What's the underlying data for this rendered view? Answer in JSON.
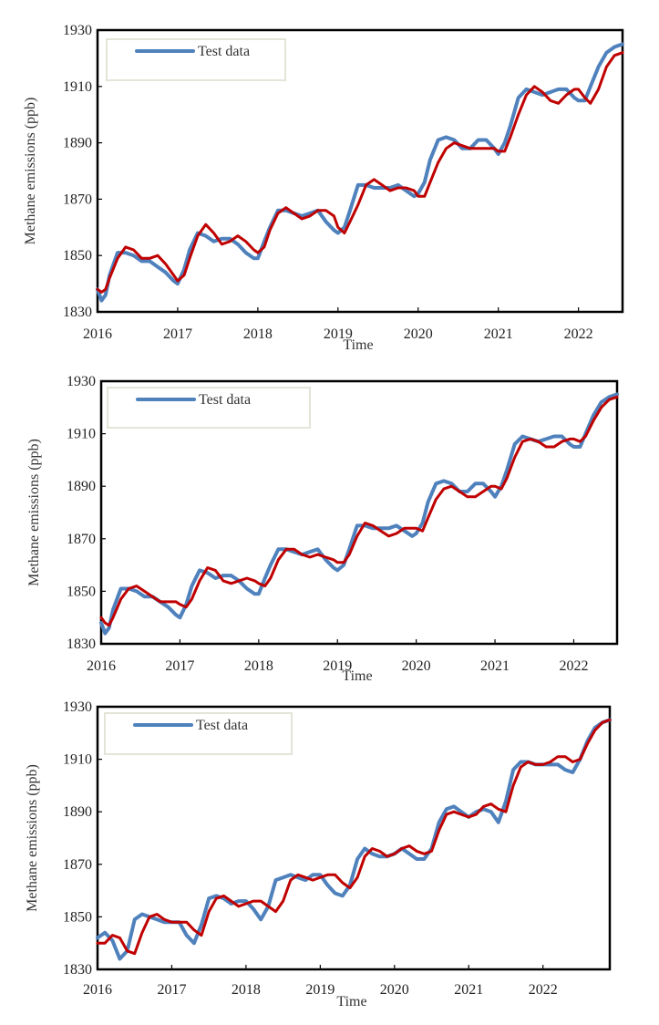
{
  "chart_data": [
    {
      "type": "line",
      "ylabel": "Methane emissions (ppb)",
      "xlabel": "Time",
      "legend": "Test data",
      "legend_position": "top-left",
      "x_ticks": [
        "2016",
        "2017",
        "2018",
        "2019",
        "2020",
        "2021",
        "2022"
      ],
      "y_ticks": [
        "1830",
        "1850",
        "1870",
        "1890",
        "1910",
        "1930"
      ],
      "ylim": [
        1830,
        1930
      ],
      "xlim": [
        2016.0,
        2022.55
      ],
      "grid": false,
      "colors": {
        "test": "#4f81bd",
        "pred": "#c00000"
      },
      "series": [
        {
          "name": "Test data",
          "x": [
            2016.0,
            2016.05,
            2016.1,
            2016.15,
            2016.25,
            2016.35,
            2016.45,
            2016.55,
            2016.65,
            2016.75,
            2016.85,
            2016.95,
            2017.0,
            2017.08,
            2017.15,
            2017.25,
            2017.35,
            2017.45,
            2017.55,
            2017.65,
            2017.75,
            2017.85,
            2017.95,
            2018.0,
            2018.08,
            2018.15,
            2018.25,
            2018.35,
            2018.45,
            2018.55,
            2018.65,
            2018.75,
            2018.85,
            2018.95,
            2019.0,
            2019.08,
            2019.15,
            2019.25,
            2019.35,
            2019.45,
            2019.55,
            2019.65,
            2019.75,
            2019.85,
            2019.95,
            2020.0,
            2020.08,
            2020.15,
            2020.25,
            2020.35,
            2020.45,
            2020.55,
            2020.65,
            2020.75,
            2020.85,
            2020.95,
            2021.0,
            2021.08,
            2021.15,
            2021.25,
            2021.35,
            2021.45,
            2021.55,
            2021.65,
            2021.75,
            2021.85,
            2021.95,
            2022.0,
            2022.08,
            2022.15,
            2022.25,
            2022.35,
            2022.45,
            2022.55
          ],
          "y": [
            1838,
            1834,
            1836,
            1843,
            1851,
            1851,
            1850,
            1848,
            1848,
            1846,
            1844,
            1841,
            1840,
            1845,
            1852,
            1858,
            1857,
            1855,
            1856,
            1856,
            1854,
            1851,
            1849,
            1849,
            1855,
            1860,
            1866,
            1866,
            1865,
            1864,
            1865,
            1866,
            1862,
            1859,
            1858,
            1860,
            1866,
            1875,
            1875,
            1874,
            1874,
            1874,
            1875,
            1873,
            1871,
            1872,
            1876,
            1884,
            1891,
            1892,
            1891,
            1888,
            1888,
            1891,
            1891,
            1888,
            1886,
            1890,
            1896,
            1906,
            1909,
            1908,
            1907,
            1908,
            1909,
            1909,
            1906,
            1905,
            1905,
            1910,
            1917,
            1922,
            1924,
            1925
          ]
        },
        {
          "name": "",
          "x": [
            2016.0,
            2016.05,
            2016.1,
            2016.15,
            2016.25,
            2016.35,
            2016.45,
            2016.55,
            2016.65,
            2016.75,
            2016.85,
            2016.95,
            2017.0,
            2017.08,
            2017.15,
            2017.25,
            2017.35,
            2017.45,
            2017.55,
            2017.65,
            2017.75,
            2017.85,
            2017.95,
            2018.0,
            2018.08,
            2018.15,
            2018.25,
            2018.35,
            2018.45,
            2018.55,
            2018.65,
            2018.75,
            2018.85,
            2018.95,
            2019.0,
            2019.08,
            2019.15,
            2019.25,
            2019.35,
            2019.45,
            2019.55,
            2019.65,
            2019.75,
            2019.85,
            2019.95,
            2020.0,
            2020.08,
            2020.15,
            2020.25,
            2020.35,
            2020.45,
            2020.55,
            2020.65,
            2020.75,
            2020.85,
            2020.95,
            2021.0,
            2021.08,
            2021.15,
            2021.25,
            2021.35,
            2021.45,
            2021.55,
            2021.65,
            2021.75,
            2021.85,
            2021.95,
            2022.0,
            2022.08,
            2022.15,
            2022.25,
            2022.35,
            2022.45,
            2022.55
          ],
          "y": [
            1838,
            1837,
            1838,
            1842,
            1849,
            1853,
            1852,
            1849,
            1849,
            1850,
            1847,
            1843,
            1841,
            1843,
            1849,
            1857,
            1861,
            1858,
            1854,
            1855,
            1857,
            1855,
            1852,
            1851,
            1853,
            1859,
            1865,
            1867,
            1865,
            1863,
            1864,
            1866,
            1866,
            1864,
            1860,
            1858,
            1862,
            1868,
            1875,
            1877,
            1875,
            1873,
            1874,
            1874,
            1873,
            1871,
            1871,
            1876,
            1883,
            1888,
            1890,
            1889,
            1888,
            1888,
            1888,
            1888,
            1887,
            1887,
            1892,
            1900,
            1907,
            1910,
            1908,
            1905,
            1904,
            1907,
            1909,
            1909,
            1906,
            1904,
            1909,
            1917,
            1921,
            1922
          ]
        }
      ]
    },
    {
      "type": "line",
      "ylabel": "Methane emissions (ppb)",
      "xlabel": "Time",
      "legend": "Test data",
      "legend_position": "top-left",
      "x_ticks": [
        "2016",
        "2017",
        "2018",
        "2019",
        "2020",
        "2021",
        "2022"
      ],
      "y_ticks": [
        "1830",
        "1850",
        "1870",
        "1890",
        "1910",
        "1930"
      ],
      "ylim": [
        1830,
        1930
      ],
      "xlim": [
        2016.0,
        2022.55
      ],
      "grid": false,
      "colors": {
        "test": "#4f81bd",
        "pred": "#c00000"
      },
      "series": [
        {
          "name": "Test data",
          "x": [
            2016.0,
            2016.05,
            2016.1,
            2016.15,
            2016.25,
            2016.35,
            2016.45,
            2016.55,
            2016.65,
            2016.75,
            2016.85,
            2016.95,
            2017.0,
            2017.08,
            2017.15,
            2017.25,
            2017.35,
            2017.45,
            2017.55,
            2017.65,
            2017.75,
            2017.85,
            2017.95,
            2018.0,
            2018.08,
            2018.15,
            2018.25,
            2018.35,
            2018.45,
            2018.55,
            2018.65,
            2018.75,
            2018.85,
            2018.95,
            2019.0,
            2019.08,
            2019.15,
            2019.25,
            2019.35,
            2019.45,
            2019.55,
            2019.65,
            2019.75,
            2019.85,
            2019.95,
            2020.0,
            2020.08,
            2020.15,
            2020.25,
            2020.35,
            2020.45,
            2020.55,
            2020.65,
            2020.75,
            2020.85,
            2020.95,
            2021.0,
            2021.08,
            2021.15,
            2021.25,
            2021.35,
            2021.45,
            2021.55,
            2021.65,
            2021.75,
            2021.85,
            2021.95,
            2022.0,
            2022.08,
            2022.15,
            2022.25,
            2022.35,
            2022.45,
            2022.55
          ],
          "y": [
            1838,
            1834,
            1836,
            1843,
            1851,
            1851,
            1850,
            1848,
            1848,
            1846,
            1844,
            1841,
            1840,
            1845,
            1852,
            1858,
            1857,
            1855,
            1856,
            1856,
            1854,
            1851,
            1849,
            1849,
            1855,
            1860,
            1866,
            1866,
            1865,
            1864,
            1865,
            1866,
            1862,
            1859,
            1858,
            1860,
            1866,
            1875,
            1875,
            1874,
            1874,
            1874,
            1875,
            1873,
            1871,
            1872,
            1876,
            1884,
            1891,
            1892,
            1891,
            1888,
            1888,
            1891,
            1891,
            1888,
            1886,
            1890,
            1896,
            1906,
            1909,
            1908,
            1907,
            1908,
            1909,
            1909,
            1906,
            1905,
            1905,
            1910,
            1917,
            1922,
            1924,
            1925
          ]
        },
        {
          "name": "",
          "x": [
            2016.0,
            2016.05,
            2016.1,
            2016.15,
            2016.25,
            2016.35,
            2016.45,
            2016.55,
            2016.65,
            2016.75,
            2016.85,
            2016.95,
            2017.0,
            2017.08,
            2017.15,
            2017.25,
            2017.35,
            2017.45,
            2017.55,
            2017.65,
            2017.75,
            2017.85,
            2017.95,
            2018.0,
            2018.08,
            2018.15,
            2018.25,
            2018.35,
            2018.45,
            2018.55,
            2018.65,
            2018.75,
            2018.85,
            2018.95,
            2019.0,
            2019.08,
            2019.15,
            2019.25,
            2019.35,
            2019.45,
            2019.55,
            2019.65,
            2019.75,
            2019.85,
            2019.95,
            2020.0,
            2020.08,
            2020.15,
            2020.25,
            2020.35,
            2020.45,
            2020.55,
            2020.65,
            2020.75,
            2020.85,
            2020.95,
            2021.0,
            2021.08,
            2021.15,
            2021.25,
            2021.35,
            2021.45,
            2021.55,
            2021.65,
            2021.75,
            2021.85,
            2021.95,
            2022.0,
            2022.08,
            2022.15,
            2022.25,
            2022.35,
            2022.45,
            2022.55
          ],
          "y": [
            1840,
            1838,
            1837,
            1840,
            1847,
            1851,
            1852,
            1850,
            1848,
            1846,
            1846,
            1846,
            1845,
            1844,
            1847,
            1854,
            1859,
            1858,
            1854,
            1853,
            1854,
            1855,
            1854,
            1853,
            1852,
            1855,
            1862,
            1866,
            1866,
            1864,
            1863,
            1864,
            1863,
            1862,
            1861,
            1861,
            1864,
            1871,
            1876,
            1875,
            1873,
            1871,
            1872,
            1874,
            1874,
            1874,
            1873,
            1878,
            1885,
            1889,
            1890,
            1888,
            1886,
            1886,
            1888,
            1890,
            1890,
            1889,
            1893,
            1901,
            1907,
            1908,
            1907,
            1905,
            1905,
            1907,
            1908,
            1908,
            1907,
            1909,
            1915,
            1920,
            1923,
            1924
          ]
        }
      ]
    },
    {
      "type": "line",
      "ylabel": "Methane emissions (ppb)",
      "xlabel": "Time",
      "legend": "Test data",
      "legend_position": "top-left",
      "x_ticks": [
        "2016",
        "2017",
        "2018",
        "2019",
        "2020",
        "2021",
        "2022"
      ],
      "y_ticks": [
        "1830",
        "1850",
        "1870",
        "1890",
        "1910",
        "1930"
      ],
      "ylim": [
        1830,
        1930
      ],
      "xlim": [
        2016.0,
        2022.9
      ],
      "grid": false,
      "colors": {
        "test": "#4f81bd",
        "pred": "#c00000"
      },
      "series": [
        {
          "name": "Test data",
          "x": [
            2016.0,
            2016.1,
            2016.2,
            2016.3,
            2016.4,
            2016.5,
            2016.6,
            2016.7,
            2016.8,
            2016.9,
            2017.0,
            2017.1,
            2017.2,
            2017.3,
            2017.4,
            2017.5,
            2017.6,
            2017.7,
            2017.8,
            2017.9,
            2018.0,
            2018.1,
            2018.2,
            2018.3,
            2018.4,
            2018.5,
            2018.6,
            2018.7,
            2018.8,
            2018.9,
            2019.0,
            2019.1,
            2019.2,
            2019.3,
            2019.4,
            2019.5,
            2019.6,
            2019.7,
            2019.8,
            2019.9,
            2020.0,
            2020.1,
            2020.2,
            2020.3,
            2020.4,
            2020.5,
            2020.6,
            2020.7,
            2020.8,
            2020.9,
            2021.0,
            2021.1,
            2021.2,
            2021.3,
            2021.4,
            2021.5,
            2021.6,
            2021.7,
            2021.8,
            2021.9,
            2022.0,
            2022.1,
            2022.2,
            2022.3,
            2022.4,
            2022.5,
            2022.6,
            2022.7,
            2022.8,
            2022.9
          ],
          "y": [
            1842,
            1844,
            1841,
            1834,
            1837,
            1849,
            1851,
            1850,
            1849,
            1848,
            1848,
            1848,
            1843,
            1840,
            1847,
            1857,
            1858,
            1857,
            1855,
            1856,
            1856,
            1853,
            1849,
            1854,
            1864,
            1865,
            1866,
            1865,
            1864,
            1866,
            1866,
            1862,
            1859,
            1858,
            1862,
            1872,
            1876,
            1874,
            1873,
            1873,
            1874,
            1876,
            1874,
            1872,
            1872,
            1876,
            1886,
            1891,
            1892,
            1890,
            1888,
            1890,
            1891,
            1890,
            1886,
            1894,
            1906,
            1909,
            1909,
            1908,
            1908,
            1908,
            1908,
            1906,
            1905,
            1910,
            1917,
            1922,
            1924,
            1925
          ]
        },
        {
          "name": "",
          "x": [
            2016.0,
            2016.1,
            2016.2,
            2016.3,
            2016.4,
            2016.5,
            2016.6,
            2016.7,
            2016.8,
            2016.9,
            2017.0,
            2017.1,
            2017.2,
            2017.3,
            2017.4,
            2017.5,
            2017.6,
            2017.7,
            2017.8,
            2017.9,
            2018.0,
            2018.1,
            2018.2,
            2018.3,
            2018.4,
            2018.5,
            2018.6,
            2018.7,
            2018.8,
            2018.9,
            2019.0,
            2019.1,
            2019.2,
            2019.3,
            2019.4,
            2019.5,
            2019.6,
            2019.7,
            2019.8,
            2019.9,
            2020.0,
            2020.1,
            2020.2,
            2020.3,
            2020.4,
            2020.5,
            2020.6,
            2020.7,
            2020.8,
            2020.9,
            2021.0,
            2021.1,
            2021.2,
            2021.3,
            2021.4,
            2021.5,
            2021.6,
            2021.7,
            2021.8,
            2021.9,
            2022.0,
            2022.1,
            2022.2,
            2022.3,
            2022.4,
            2022.5,
            2022.6,
            2022.7,
            2022.8,
            2022.9
          ],
          "y": [
            1840,
            1840,
            1843,
            1842,
            1837,
            1836,
            1844,
            1850,
            1851,
            1849,
            1848,
            1848,
            1848,
            1845,
            1843,
            1852,
            1857,
            1858,
            1856,
            1854,
            1855,
            1856,
            1856,
            1854,
            1852,
            1856,
            1864,
            1866,
            1865,
            1864,
            1865,
            1866,
            1866,
            1863,
            1861,
            1865,
            1873,
            1876,
            1875,
            1873,
            1874,
            1876,
            1877,
            1875,
            1874,
            1875,
            1883,
            1889,
            1890,
            1889,
            1888,
            1889,
            1892,
            1893,
            1891,
            1890,
            1900,
            1907,
            1909,
            1908,
            1908,
            1909,
            1911,
            1911,
            1909,
            1910,
            1916,
            1921,
            1924,
            1925
          ]
        }
      ]
    }
  ]
}
